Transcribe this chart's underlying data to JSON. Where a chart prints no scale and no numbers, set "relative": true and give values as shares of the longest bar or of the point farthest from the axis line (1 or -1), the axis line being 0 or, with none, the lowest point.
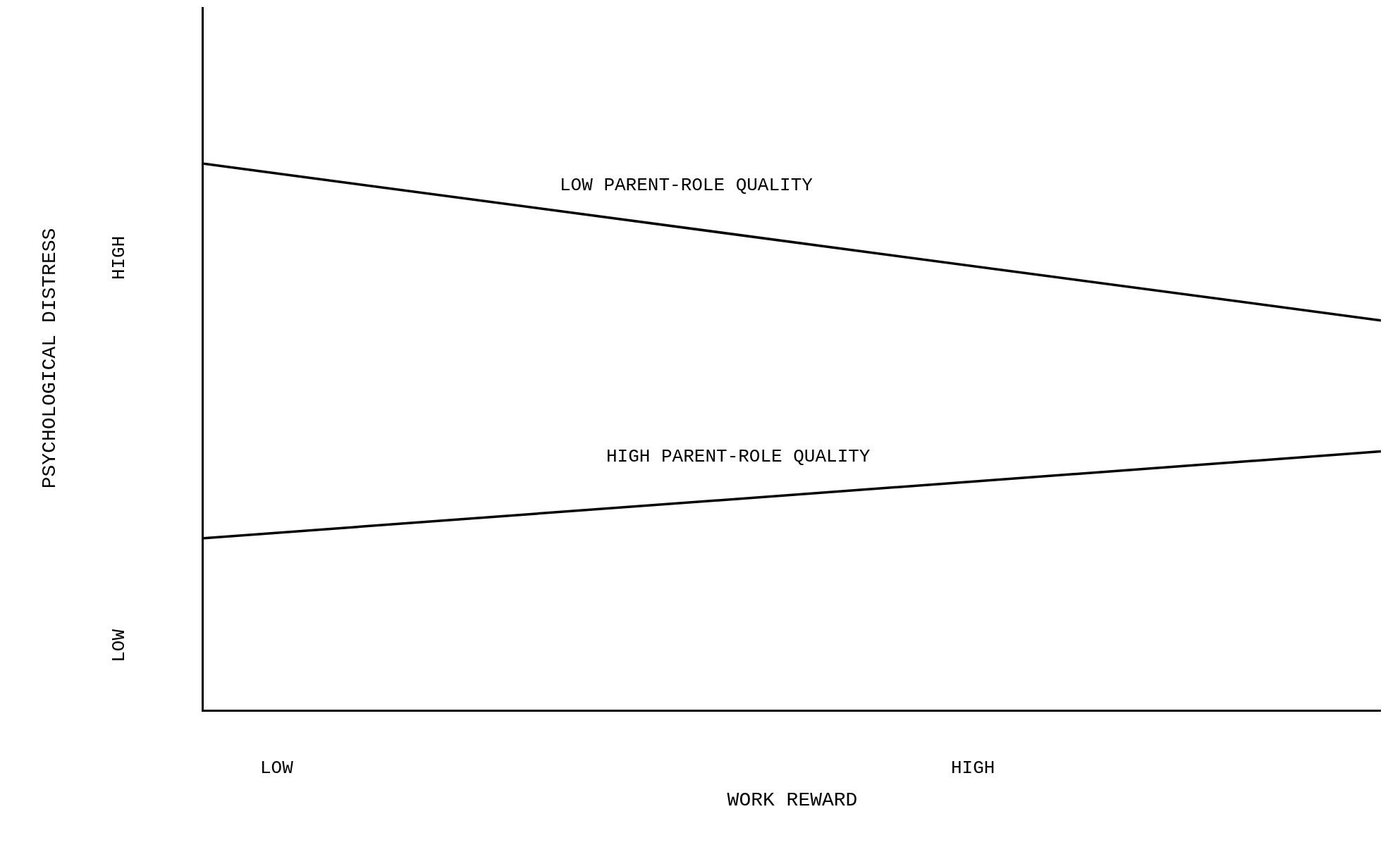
{
  "chart_data": {
    "type": "line",
    "relative": true,
    "xlabel": "WORK REWARD",
    "ylabel": "PSYCHOLOGICAL DISTRESS",
    "categories": [
      null,
      null
    ],
    "series": [
      {
        "name": "LOW PARENT-ROLE QUALITY",
        "color": "#000000",
        "values": [
          1,
          0.713
        ]
      },
      {
        "name": "HIGH PARENT-ROLE QUALITY",
        "color": "#000000",
        "values": [
          0.314,
          0.473
        ]
      }
    ],
    "annotations": [
      "LOW",
      "HIGH",
      "LOW",
      "HIGH"
    ],
    "legend": false,
    "marker": "none",
    "line_style": "solid"
  }
}
